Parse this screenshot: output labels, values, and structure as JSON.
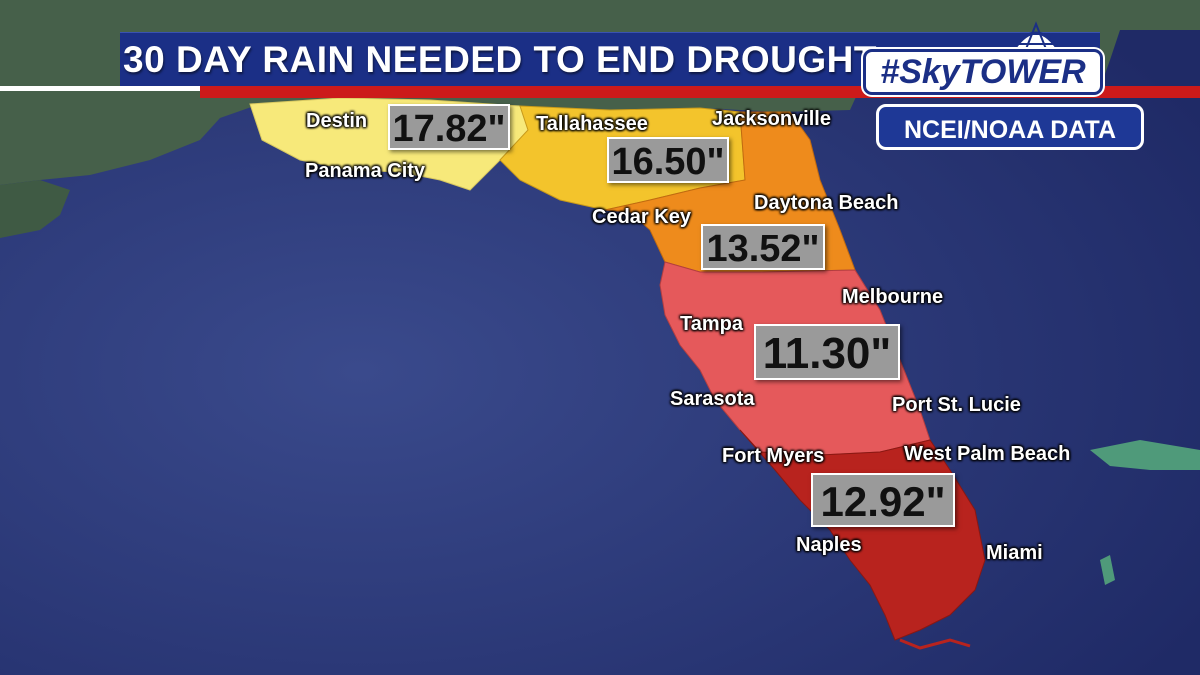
{
  "header": {
    "title": "30 DAY RAIN NEEDED TO END DROUGHT",
    "logo_text": "#SkyTOWER"
  },
  "source_badge": "NCEI/NOAA DATA",
  "colors": {
    "ocean": "#2a3570",
    "region_panhandle": "#f7e97a",
    "region_big_bend": "#f3c42c",
    "region_northeast": "#ee8b1c",
    "region_central": "#e5595b",
    "region_south": "#b8231e",
    "title_bar": "#1b2f86",
    "accent_red": "#cc1a1a"
  },
  "cities": {
    "destin": "Destin",
    "panama_city": "Panama City",
    "tallahassee": "Tallahassee",
    "jacksonville": "Jacksonville",
    "cedar_key": "Cedar Key",
    "daytona_beach": "Daytona Beach",
    "melbourne": "Melbourne",
    "tampa": "Tampa",
    "sarasota": "Sarasota",
    "port_st_lucie": "Port St. Lucie",
    "fort_myers": "Fort Myers",
    "west_palm_beach": "West Palm Beach",
    "naples": "Naples",
    "miami": "Miami"
  },
  "values": {
    "panhandle": "17.82\"",
    "big_bend": "16.50\"",
    "northeast": "13.52\"",
    "central": "11.30\"",
    "south": "12.92\""
  }
}
